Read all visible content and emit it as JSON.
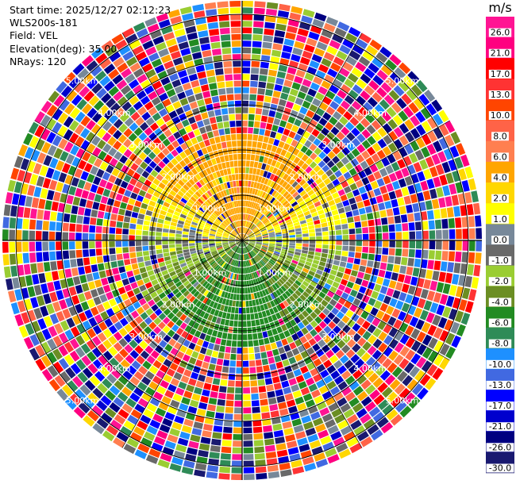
{
  "chart_data": {
    "type": "ppi",
    "info": {
      "start_time": "Start time: 2025/12/27 02:12:23",
      "site": "WLS200s-181",
      "field": "Field: VEL",
      "elevation": "Elevation(deg): 35.00",
      "nrays": "NRays: 120"
    },
    "range_rings_km": [
      1,
      2,
      3,
      4,
      5
    ],
    "ring_labels": [
      "1.00km",
      "2.00km",
      "3.00km",
      "4.00km",
      "5.00km"
    ],
    "max_range_km": 5.3,
    "range_gates": 36,
    "n_rays": 120,
    "colorbar": {
      "unit": "m/s",
      "tick_labels": [
        "26.0",
        "21.0",
        "17.0",
        "13.0",
        "10.0",
        "8.0",
        "6.0",
        "4.0",
        "2.0",
        "1.0",
        "0.0",
        "-1.0",
        "-2.0",
        "-4.0",
        "-6.0",
        "-8.0",
        "-10.0",
        "-13.0",
        "-17.0",
        "-21.0",
        "-26.0",
        "-30.0"
      ],
      "colors": [
        "#ff1493",
        "#ff0080",
        "#ff0000",
        "#ff3333",
        "#ff4500",
        "#ff6347",
        "#ff7f50",
        "#ffa500",
        "#ffd700",
        "#ffff00",
        "#778899",
        "#696969",
        "#9acd32",
        "#6b8e23",
        "#228b22",
        "#2e8b57",
        "#1e90ff",
        "#4169e1",
        "#0000ff",
        "#0000cd",
        "#000080",
        "#191970"
      ]
    },
    "pattern": {
      "inner_radius_km": 2.4,
      "near_field": "positive velocities (yellow/orange) toward the north, negative (green/grey) toward the south",
      "far_field": "noise"
    }
  }
}
